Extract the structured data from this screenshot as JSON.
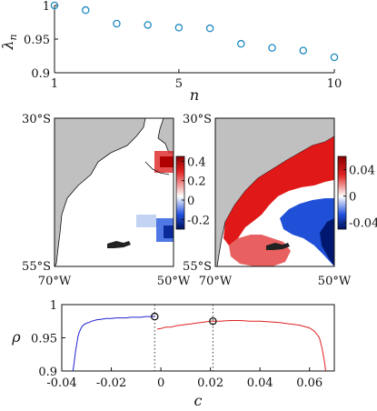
{
  "chart_data": [
    {
      "type": "scatter",
      "panel": "eigenvalues",
      "xlabel": "n",
      "ylabel": "λ",
      "ylabel_sub": "n",
      "xlim": [
        1,
        10
      ],
      "ylim": [
        0.9,
        1.0
      ],
      "xticks": [
        "1",
        "5",
        "10"
      ],
      "yticks": [
        "0.9",
        "0.95",
        "1"
      ],
      "marker_color": "#1f8ac0",
      "x": [
        1,
        2,
        3,
        4,
        5,
        6,
        7,
        8,
        9,
        10
      ],
      "y": [
        1.0,
        0.993,
        0.973,
        0.971,
        0.967,
        0.966,
        0.943,
        0.937,
        0.933,
        0.923
      ]
    },
    {
      "type": "heatmap",
      "panel": "map-left",
      "lat_labels": [
        "30°S",
        "55°S"
      ],
      "lon_labels": [
        "70°W",
        "50°W"
      ],
      "colorbar_ticks": [
        "0.4",
        "0.2",
        "0",
        "-0.2"
      ],
      "colorbar_range": [
        -0.3,
        0.45
      ],
      "land_color": "#c0c0c0",
      "positive_color": "#d01010",
      "negative_color": "#1030c0"
    },
    {
      "type": "heatmap",
      "panel": "map-right",
      "lat_labels": [
        "30°S",
        "55°S"
      ],
      "lon_labels": [
        "70°W",
        "50°W"
      ],
      "colorbar_ticks": [
        "0.04",
        "0",
        "-0.04"
      ],
      "colorbar_range": [
        -0.05,
        0.06
      ],
      "land_color": "#c0c0c0",
      "positive_color": "#d01010",
      "negative_color": "#1030c0"
    },
    {
      "type": "line",
      "panel": "correlation",
      "xlabel": "c",
      "ylabel": "ρ",
      "xlim": [
        -0.04,
        0.07
      ],
      "ylim": [
        0.9,
        1.0
      ],
      "xticks": [
        "-0.04",
        "-0.02",
        "0",
        "0.02",
        "0.04",
        "0.06"
      ],
      "yticks": [
        "0.9",
        "0.95",
        "1"
      ],
      "series": [
        {
          "color": "#2020d0",
          "x": [
            -0.0355,
            -0.035,
            -0.0345,
            -0.034,
            -0.0335,
            -0.033,
            -0.032,
            -0.031,
            -0.03,
            -0.029,
            -0.028,
            -0.026,
            -0.024,
            -0.022,
            -0.02,
            -0.018,
            -0.016,
            -0.014,
            -0.012,
            -0.01,
            -0.008,
            -0.006,
            -0.004,
            -0.0025
          ],
          "y": [
            0.9,
            0.912,
            0.928,
            0.94,
            0.951,
            0.958,
            0.966,
            0.97,
            0.972,
            0.973,
            0.975,
            0.977,
            0.978,
            0.979,
            0.979,
            0.98,
            0.98,
            0.98,
            0.981,
            0.981,
            0.981,
            0.982,
            0.982,
            0.982
          ]
        },
        {
          "color": "#e02020",
          "x": [
            -0.0015,
            0.0,
            0.002,
            0.004,
            0.006,
            0.008,
            0.01,
            0.012,
            0.014,
            0.016,
            0.018,
            0.02,
            0.021,
            0.024,
            0.028,
            0.032,
            0.036,
            0.04,
            0.044,
            0.048,
            0.052,
            0.056,
            0.06,
            0.062,
            0.064,
            0.065,
            0.066,
            0.0665
          ],
          "y": [
            0.963,
            0.964,
            0.966,
            0.966,
            0.968,
            0.969,
            0.97,
            0.971,
            0.972,
            0.973,
            0.974,
            0.975,
            0.975,
            0.975,
            0.976,
            0.976,
            0.975,
            0.975,
            0.974,
            0.973,
            0.971,
            0.969,
            0.965,
            0.96,
            0.95,
            0.935,
            0.915,
            0.9
          ]
        }
      ],
      "markers": [
        {
          "x": -0.0025,
          "y": 0.982
        },
        {
          "x": 0.021,
          "y": 0.975
        }
      ],
      "vlines": [
        -0.0025,
        0.021
      ]
    }
  ]
}
